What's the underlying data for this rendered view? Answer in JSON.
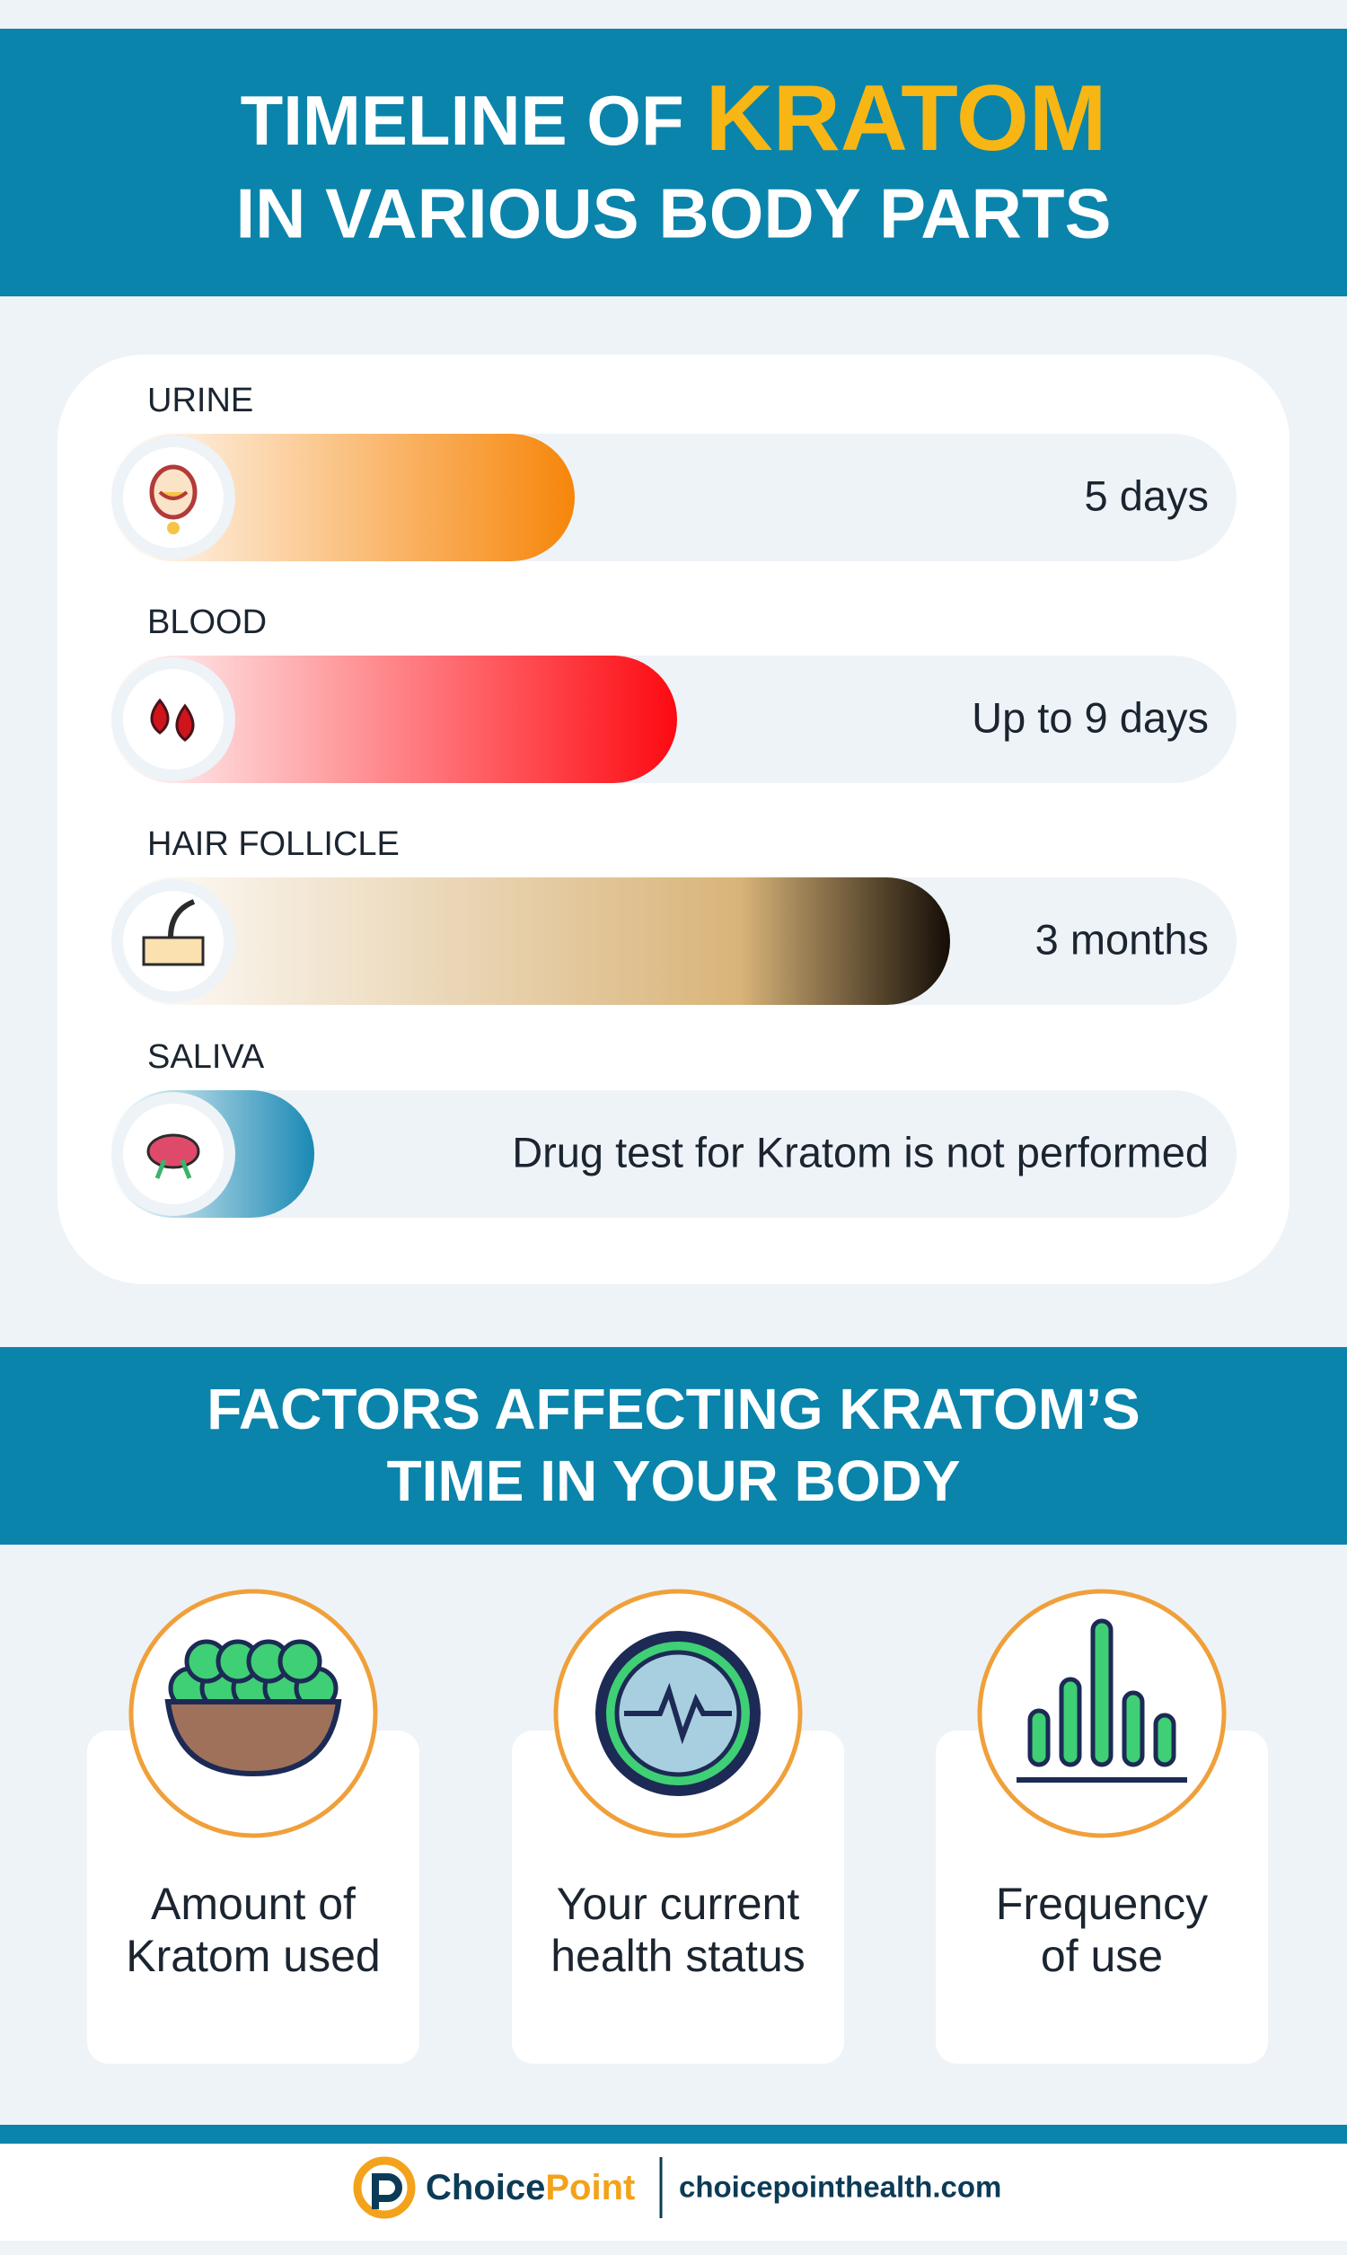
{
  "header": {
    "title_prefix": "TIMELINE OF",
    "title_highlight": "KRATOM",
    "title_line2": "IN VARIOUS BODY PARTS"
  },
  "timeline": [
    {
      "label": "URINE",
      "duration": "5 days"
    },
    {
      "label": "BLOOD",
      "duration": "Up to 9 days"
    },
    {
      "label": "HAIR FOLLICLE",
      "duration": "3 months"
    },
    {
      "label": "SALIVA",
      "duration": "Drug test for Kratom is not performed"
    }
  ],
  "factors": {
    "title_line1": "FACTORS AFFECTING KRATOM’S",
    "title_line2": "TIME IN YOUR BODY",
    "items": [
      {
        "line1": "Amount of",
        "line2": "Kratom used"
      },
      {
        "line1": "Your current",
        "line2": "health status"
      },
      {
        "line1": "Frequency",
        "line2": "of use"
      }
    ]
  },
  "footer": {
    "brand_part1": "Choice",
    "brand_part2": "Point",
    "website": "choicepointhealth.com"
  }
}
